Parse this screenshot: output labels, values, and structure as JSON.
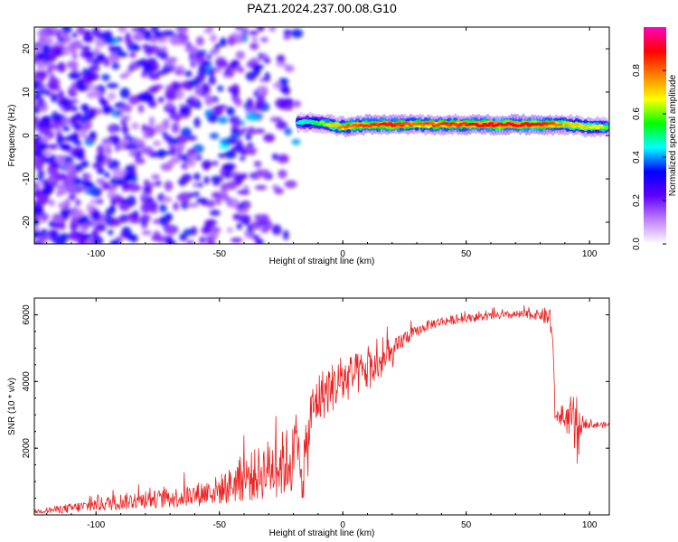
{
  "title": "PAZ1.2024.237.00.08.G10",
  "chart_data": [
    {
      "type": "heatmap",
      "xlabel": "Height of straight line (km)",
      "ylabel": "Frequency (Hz)",
      "xlim": [
        -125,
        108
      ],
      "ylim": [
        -25,
        25
      ],
      "x_ticks": [
        "-100",
        "-50",
        "0",
        "50",
        "100"
      ],
      "y_ticks": [
        "-20",
        "-10",
        "0",
        "10",
        "20"
      ],
      "colorbar": {
        "label": "Normalized spectral amplitude",
        "range": [
          0,
          1
        ],
        "ticks": [
          "0.0",
          "0.2",
          "0.4",
          "0.6",
          "0.8"
        ],
        "colors": [
          "#ffffff",
          "#c080ff",
          "#6000ff",
          "#0000ff",
          "#00ffff",
          "#00ff00",
          "#ffff00",
          "#ff8000",
          "#ff0000",
          "#ff00c0"
        ]
      },
      "ridge": {
        "description_free_values": true,
        "x": [
          -18,
          -10,
          0,
          10,
          20,
          30,
          40,
          50,
          60,
          70,
          80,
          90,
          100,
          108
        ],
        "frequency": [
          3,
          3,
          2,
          2.5,
          2.5,
          2.5,
          2.5,
          2.5,
          2.5,
          2.5,
          2.5,
          2.5,
          2,
          2
        ],
        "amplitude": [
          0.45,
          0.55,
          0.8,
          0.85,
          0.9,
          0.8,
          0.85,
          0.85,
          0.9,
          0.9,
          0.9,
          0.75,
          0.7,
          0.6
        ]
      },
      "noise_region": {
        "x_range": [
          -125,
          -18
        ],
        "frequency_range": [
          -25,
          25
        ],
        "amplitude": [
          0.1,
          0.35
        ]
      }
    },
    {
      "type": "line",
      "xlabel": "Height of straight line (km)",
      "ylabel": "SNR (10 * v/v)",
      "xlim": [
        -125,
        108
      ],
      "ylim": [
        0,
        6500
      ],
      "x_ticks": [
        "-100",
        "-50",
        "0",
        "50",
        "100"
      ],
      "y_ticks": [
        "2000",
        "4000",
        "6000"
      ],
      "color": "#ee2222",
      "x": [
        -125,
        -110,
        -100,
        -90,
        -80,
        -70,
        -60,
        -50,
        -45,
        -40,
        -35,
        -30,
        -25,
        -20,
        -15,
        -13,
        -10,
        -5,
        0,
        5,
        10,
        15,
        20,
        25,
        30,
        35,
        40,
        50,
        60,
        70,
        80,
        84,
        85,
        86,
        90,
        93,
        95,
        97,
        100,
        108
      ],
      "y": [
        100,
        200,
        300,
        400,
        450,
        500,
        600,
        750,
        900,
        1100,
        1200,
        1400,
        1500,
        1700,
        1500,
        3000,
        3500,
        3800,
        4000,
        4200,
        4300,
        4500,
        4800,
        5300,
        5500,
        5700,
        5800,
        5900,
        5950,
        6000,
        6000,
        5900,
        5400,
        3000,
        2800,
        2900,
        2200,
        2800,
        2700,
        2700
      ],
      "spread": [
        60,
        150,
        200,
        250,
        250,
        300,
        350,
        450,
        550,
        700,
        800,
        900,
        1000,
        1100,
        1200,
        800,
        800,
        750,
        700,
        650,
        600,
        500,
        400,
        250,
        150,
        150,
        150,
        120,
        120,
        120,
        150,
        400,
        400,
        200,
        250,
        800,
        900,
        200,
        100,
        80
      ]
    }
  ]
}
